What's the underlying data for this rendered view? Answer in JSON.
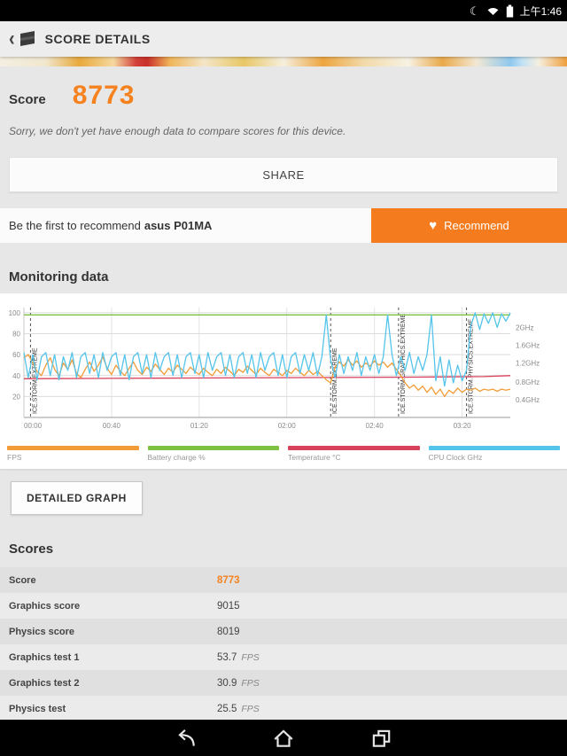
{
  "status_bar": {
    "time": "上午1:46"
  },
  "icons": {
    "moon": "☾",
    "heart": "♥"
  },
  "app_bar": {
    "title": "SCORE DETAILS"
  },
  "score": {
    "label": "Score",
    "value": "8773"
  },
  "note": "Sorry, we don't yet have enough data to compare scores for this device.",
  "share": {
    "label": "SHARE"
  },
  "recommend": {
    "prefix": "Be the first to recommend",
    "device": "asus P01MA",
    "button": "Recommend"
  },
  "monitoring": {
    "title": "Monitoring data",
    "detailed_button": "DETAILED GRAPH"
  },
  "legend": [
    {
      "label": "FPS",
      "color": "#f29c38"
    },
    {
      "label": "Battery charge %",
      "color": "#7dc242"
    },
    {
      "label": "Temperature °C",
      "color": "#d8415a"
    },
    {
      "label": "CPU Clock GHz",
      "color": "#55c4ea"
    }
  ],
  "colors": {
    "accent_orange": "#f5821f",
    "recommend_btn": "#f57c1e"
  },
  "chart_data": {
    "type": "line",
    "title": "Monitoring data",
    "x_range": [
      0,
      222
    ],
    "x_ticks": [
      {
        "label": "00:00",
        "t": 0
      },
      {
        "label": "00:40",
        "t": 40
      },
      {
        "label": "01:20",
        "t": 80
      },
      {
        "label": "02:00",
        "t": 120
      },
      {
        "label": "02:40",
        "t": 160
      },
      {
        "label": "03:20",
        "t": 200
      }
    ],
    "y_left_range": [
      0,
      105
    ],
    "y_left_ticks": [
      20,
      40,
      60,
      80,
      100
    ],
    "y_right_ticks": [
      {
        "label": "0.4GHz",
        "v": 17
      },
      {
        "label": "0.8GHz",
        "v": 34
      },
      {
        "label": "1.2GHz",
        "v": 52
      },
      {
        "label": "1.6GHz",
        "v": 69
      },
      {
        "label": "2GHz",
        "v": 86
      }
    ],
    "sections": [
      {
        "label": "ICE.STORM.EXTREME",
        "t": 3
      },
      {
        "label": "ICE.STORM.EXTREME",
        "t": 140
      },
      {
        "label": "ICE.STORM.GRAPHICS.EXTREME",
        "t": 171
      },
      {
        "label": "ICE.STORM.PHYSICS.EXTREME",
        "t": 202
      }
    ],
    "series": [
      {
        "name": "Battery charge %",
        "color": "#7dc242",
        "points": [
          [
            0,
            98
          ],
          [
            222,
            98
          ]
        ]
      },
      {
        "name": "Temperature °C",
        "color": "#d8415a",
        "points": [
          [
            0,
            37
          ],
          [
            60,
            37.5
          ],
          [
            120,
            38
          ],
          [
            180,
            38.5
          ],
          [
            210,
            39
          ],
          [
            222,
            40
          ]
        ]
      },
      {
        "name": "FPS",
        "color": "#f29c38",
        "points": [
          [
            0,
            57
          ],
          [
            2,
            60
          ],
          [
            4,
            52
          ],
          [
            6,
            44
          ],
          [
            8,
            40
          ],
          [
            10,
            50
          ],
          [
            12,
            57
          ],
          [
            14,
            46
          ],
          [
            16,
            40
          ],
          [
            18,
            52
          ],
          [
            20,
            46
          ],
          [
            22,
            55
          ],
          [
            24,
            42
          ],
          [
            26,
            38
          ],
          [
            28,
            46
          ],
          [
            30,
            53
          ],
          [
            32,
            44
          ],
          [
            34,
            50
          ],
          [
            36,
            58
          ],
          [
            38,
            47
          ],
          [
            40,
            41
          ],
          [
            42,
            50
          ],
          [
            44,
            44
          ],
          [
            46,
            40
          ],
          [
            48,
            47
          ],
          [
            50,
            53
          ],
          [
            52,
            45
          ],
          [
            54,
            41
          ],
          [
            56,
            48
          ],
          [
            58,
            44
          ],
          [
            60,
            51
          ],
          [
            62,
            46
          ],
          [
            64,
            41
          ],
          [
            66,
            47
          ],
          [
            68,
            43
          ],
          [
            70,
            50
          ],
          [
            72,
            46
          ],
          [
            74,
            42
          ],
          [
            76,
            48
          ],
          [
            78,
            44
          ],
          [
            80,
            41
          ],
          [
            82,
            47
          ],
          [
            84,
            43
          ],
          [
            86,
            40
          ],
          [
            88,
            46
          ],
          [
            90,
            42
          ],
          [
            92,
            48
          ],
          [
            94,
            44
          ],
          [
            96,
            40
          ],
          [
            98,
            46
          ],
          [
            100,
            43
          ],
          [
            102,
            49
          ],
          [
            104,
            45
          ],
          [
            106,
            41
          ],
          [
            108,
            47
          ],
          [
            110,
            43
          ],
          [
            112,
            40
          ],
          [
            114,
            46
          ],
          [
            116,
            43
          ],
          [
            118,
            40
          ],
          [
            120,
            45
          ],
          [
            122,
            42
          ],
          [
            124,
            47
          ],
          [
            126,
            43
          ],
          [
            128,
            40
          ],
          [
            130,
            45
          ],
          [
            132,
            41
          ],
          [
            134,
            44
          ],
          [
            136,
            40
          ],
          [
            138,
            36
          ],
          [
            140,
            33
          ],
          [
            142,
            48
          ],
          [
            144,
            53
          ],
          [
            146,
            49
          ],
          [
            148,
            55
          ],
          [
            150,
            50
          ],
          [
            152,
            54
          ],
          [
            154,
            48
          ],
          [
            156,
            52
          ],
          [
            158,
            49
          ],
          [
            160,
            54
          ],
          [
            162,
            50
          ],
          [
            164,
            53
          ],
          [
            166,
            48
          ],
          [
            168,
            52
          ],
          [
            170,
            46
          ],
          [
            172,
            40
          ],
          [
            174,
            33
          ],
          [
            176,
            28
          ],
          [
            178,
            31
          ],
          [
            180,
            26
          ],
          [
            182,
            30
          ],
          [
            184,
            24
          ],
          [
            186,
            29
          ],
          [
            188,
            22
          ],
          [
            190,
            27
          ],
          [
            192,
            20
          ],
          [
            194,
            26
          ],
          [
            196,
            23
          ],
          [
            198,
            28
          ],
          [
            200,
            24
          ],
          [
            202,
            27
          ],
          [
            204,
            26
          ],
          [
            206,
            28
          ],
          [
            208,
            25
          ],
          [
            210,
            27
          ],
          [
            212,
            26
          ],
          [
            214,
            27
          ],
          [
            216,
            25
          ],
          [
            218,
            27
          ],
          [
            220,
            26
          ],
          [
            222,
            27
          ]
        ]
      },
      {
        "name": "CPU Clock GHz",
        "color": "#55c4ea",
        "points": [
          [
            0,
            62
          ],
          [
            2,
            38
          ],
          [
            4,
            60
          ],
          [
            6,
            36
          ],
          [
            8,
            58
          ],
          [
            10,
            62
          ],
          [
            12,
            40
          ],
          [
            14,
            60
          ],
          [
            16,
            36
          ],
          [
            18,
            58
          ],
          [
            20,
            45
          ],
          [
            22,
            62
          ],
          [
            24,
            38
          ],
          [
            26,
            58
          ],
          [
            28,
            62
          ],
          [
            30,
            42
          ],
          [
            32,
            60
          ],
          [
            34,
            38
          ],
          [
            36,
            62
          ],
          [
            38,
            45
          ],
          [
            40,
            58
          ],
          [
            42,
            62
          ],
          [
            44,
            40
          ],
          [
            46,
            60
          ],
          [
            48,
            36
          ],
          [
            50,
            58
          ],
          [
            52,
            62
          ],
          [
            54,
            42
          ],
          [
            56,
            60
          ],
          [
            58,
            38
          ],
          [
            60,
            62
          ],
          [
            62,
            45
          ],
          [
            64,
            58
          ],
          [
            66,
            62
          ],
          [
            68,
            40
          ],
          [
            70,
            60
          ],
          [
            72,
            38
          ],
          [
            74,
            58
          ],
          [
            76,
            62
          ],
          [
            78,
            42
          ],
          [
            80,
            60
          ],
          [
            82,
            38
          ],
          [
            84,
            62
          ],
          [
            86,
            45
          ],
          [
            88,
            58
          ],
          [
            90,
            62
          ],
          [
            92,
            40
          ],
          [
            94,
            60
          ],
          [
            96,
            38
          ],
          [
            98,
            58
          ],
          [
            100,
            62
          ],
          [
            102,
            42
          ],
          [
            104,
            60
          ],
          [
            106,
            38
          ],
          [
            108,
            62
          ],
          [
            110,
            45
          ],
          [
            112,
            58
          ],
          [
            114,
            62
          ],
          [
            116,
            40
          ],
          [
            118,
            60
          ],
          [
            120,
            38
          ],
          [
            122,
            58
          ],
          [
            124,
            62
          ],
          [
            126,
            42
          ],
          [
            128,
            60
          ],
          [
            130,
            45
          ],
          [
            132,
            62
          ],
          [
            134,
            40
          ],
          [
            136,
            58
          ],
          [
            138,
            98
          ],
          [
            140,
            55
          ],
          [
            142,
            38
          ],
          [
            144,
            60
          ],
          [
            146,
            42
          ],
          [
            148,
            58
          ],
          [
            150,
            45
          ],
          [
            152,
            62
          ],
          [
            154,
            40
          ],
          [
            156,
            58
          ],
          [
            158,
            45
          ],
          [
            160,
            60
          ],
          [
            162,
            42
          ],
          [
            164,
            58
          ],
          [
            166,
            98
          ],
          [
            168,
            60
          ],
          [
            170,
            40
          ],
          [
            172,
            58
          ],
          [
            174,
            45
          ],
          [
            176,
            62
          ],
          [
            178,
            42
          ],
          [
            180,
            58
          ],
          [
            182,
            45
          ],
          [
            184,
            60
          ],
          [
            186,
            98
          ],
          [
            188,
            35
          ],
          [
            190,
            58
          ],
          [
            192,
            30
          ],
          [
            194,
            55
          ],
          [
            196,
            33
          ],
          [
            198,
            50
          ],
          [
            200,
            35
          ],
          [
            202,
            45
          ],
          [
            204,
            88
          ],
          [
            206,
            100
          ],
          [
            208,
            84
          ],
          [
            210,
            99
          ],
          [
            212,
            90
          ],
          [
            214,
            100
          ],
          [
            216,
            86
          ],
          [
            218,
            99
          ],
          [
            220,
            92
          ],
          [
            222,
            100
          ]
        ]
      }
    ],
    "legend_position": "bottom",
    "grid": true
  },
  "scores": {
    "title": "Scores",
    "rows": [
      {
        "label": "Score",
        "value": "8773",
        "unit": ""
      },
      {
        "label": "Graphics score",
        "value": "9015",
        "unit": ""
      },
      {
        "label": "Physics score",
        "value": "8019",
        "unit": ""
      },
      {
        "label": "Graphics test 1",
        "value": "53.7",
        "unit": "FPS"
      },
      {
        "label": "Graphics test 2",
        "value": "30.9",
        "unit": "FPS"
      },
      {
        "label": "Physics test",
        "value": "25.5",
        "unit": "FPS"
      }
    ]
  }
}
